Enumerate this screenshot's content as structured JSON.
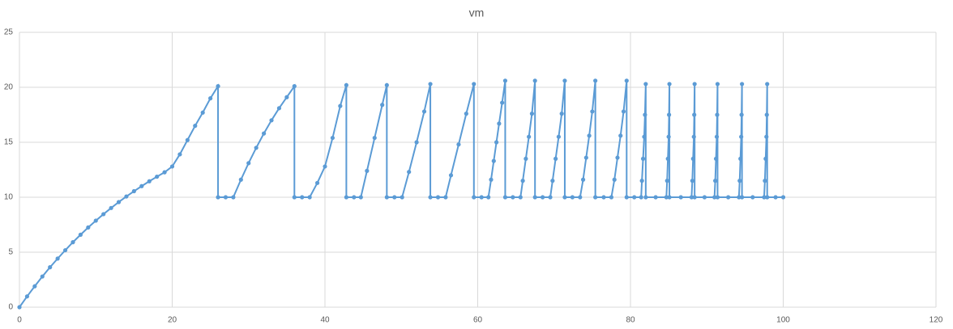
{
  "chart_data": {
    "type": "scatter",
    "title": "vm",
    "color": "#5b9bd5",
    "lines": true,
    "markers": true,
    "grid": true,
    "x": [
      0,
      1,
      2,
      3,
      4,
      5,
      6,
      7,
      8,
      9,
      10,
      11,
      12,
      13,
      14,
      15,
      16,
      17,
      18,
      19,
      20,
      21,
      22,
      23,
      24,
      25,
      26,
      26,
      27,
      28,
      29,
      30,
      31,
      32,
      33,
      34,
      35,
      36,
      36,
      37,
      38,
      39,
      40,
      41,
      42,
      42.8,
      42.8,
      43.8,
      44.7,
      45.5,
      46.5,
      47.5,
      48.1,
      48.1,
      49.1,
      50.1,
      51,
      52,
      53,
      53.8,
      53.8,
      54.8,
      55.8,
      56.5,
      57.5,
      58.5,
      59.5,
      59.5,
      60.5,
      61.4,
      61.75,
      62.1,
      62.45,
      62.8,
      63.2,
      63.6,
      63.6,
      64.6,
      65.6,
      65.9,
      66.3,
      66.7,
      67.1,
      67.5,
      67.5,
      68.5,
      69.5,
      69.8,
      70.2,
      70.6,
      71,
      71.4,
      71.4,
      72.4,
      73.4,
      73.8,
      74.2,
      74.6,
      75,
      75.4,
      75.4,
      76.5,
      77.5,
      77.9,
      78.3,
      78.7,
      79.1,
      79.5,
      79.5,
      80.5,
      81.4,
      81.5,
      81.65,
      81.8,
      81.9,
      82,
      82,
      83.3,
      84.7,
      84.8,
      84.9,
      85,
      85.05,
      85.1,
      85.1,
      86.6,
      88,
      88.1,
      88.2,
      88.3,
      88.35,
      88.4,
      88.4,
      89.7,
      91,
      91.1,
      91.2,
      91.3,
      91.35,
      91.4,
      91.4,
      92.8,
      94.2,
      94.3,
      94.4,
      94.5,
      94.55,
      94.6,
      94.6,
      96,
      97.5,
      97.6,
      97.7,
      97.8,
      97.85,
      97.9,
      97.9,
      99,
      100
    ],
    "values": [
      0,
      0.98,
      1.9,
      2.79,
      3.63,
      4.42,
      5.18,
      5.91,
      6.59,
      7.25,
      7.87,
      8.46,
      9.02,
      9.56,
      10.07,
      10.55,
      11.01,
      11.45,
      11.87,
      12.27,
      12.8,
      13.9,
      15.2,
      16.5,
      17.7,
      19,
      20.1,
      10,
      10,
      10,
      11.6,
      13.1,
      14.5,
      15.8,
      17,
      18.1,
      19.1,
      20.1,
      10,
      10,
      10,
      11.3,
      12.8,
      15.4,
      18.3,
      20.2,
      10,
      10,
      10,
      12.4,
      15.4,
      18.4,
      20.2,
      10,
      10,
      10,
      12.3,
      15,
      17.8,
      20.3,
      10,
      10,
      10,
      12,
      14.8,
      17.6,
      20.3,
      10,
      10,
      10,
      11.6,
      13.3,
      15,
      16.7,
      18.6,
      20.6,
      10,
      10,
      10,
      11.5,
      13.5,
      15.5,
      17.6,
      20.6,
      10,
      10,
      10,
      11.5,
      13.5,
      15.5,
      17.6,
      20.6,
      10,
      10,
      10,
      11.6,
      13.6,
      15.6,
      17.8,
      20.6,
      10,
      10,
      10,
      11.6,
      13.6,
      15.6,
      17.8,
      20.6,
      10,
      10,
      10,
      11.5,
      13.5,
      15.5,
      17.5,
      20.3,
      10,
      10,
      10,
      11.5,
      13.5,
      15.5,
      17.5,
      20.3,
      10,
      10,
      10,
      11.5,
      13.5,
      15.5,
      17.5,
      20.3,
      10,
      10,
      10,
      11.5,
      13.5,
      15.5,
      17.5,
      20.3,
      10,
      10,
      10,
      11.5,
      13.5,
      15.5,
      17.5,
      20.3,
      10,
      10,
      10,
      11.5,
      13.5,
      15.5,
      17.5,
      20.3,
      10,
      10,
      10
    ],
    "xlim": [
      0,
      120
    ],
    "xticks": [
      0,
      20,
      40,
      60,
      80,
      100,
      120
    ],
    "ylim": [
      0,
      25
    ],
    "yticks": [
      0,
      5,
      10,
      15,
      20,
      25
    ]
  }
}
